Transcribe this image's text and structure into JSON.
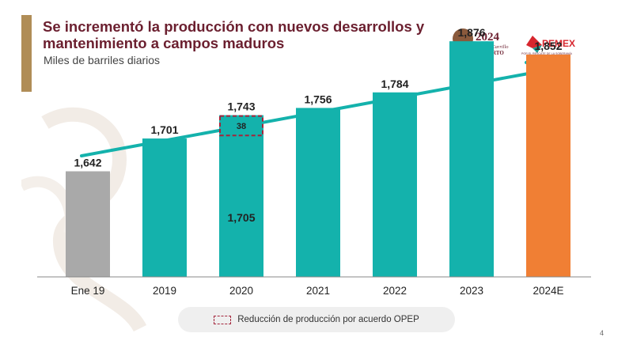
{
  "title": "Se incrementó la producción con nuevos desarrollos y mantenimiento a campos maduros",
  "subtitle": "Miles de barriles diarios",
  "logos": {
    "gov_year": "2024",
    "gov_name_line1": "Felipe Carrillo",
    "gov_name_line2": "PUERTO",
    "pemex_name": "PEMEX",
    "pemex_tagline": "POR EL RESCATE DE LA SOBERANÍA"
  },
  "legend": {
    "label": "Reducción de producción por acuerdo OPEP"
  },
  "page_number": "4",
  "colors": {
    "teal": "#14b2ac",
    "gray": "#a9a9a9",
    "orange": "#f07f34",
    "maroon": "#6b1f2f",
    "dashed": "#a3243b",
    "arrow": "#14b2ac"
  },
  "chart_data": {
    "type": "bar",
    "categories": [
      "Ene 19",
      "2019",
      "2020",
      "2021",
      "2022",
      "2023",
      "2024E"
    ],
    "values": [
      1642,
      1701,
      1743,
      1756,
      1784,
      1876,
      1852
    ],
    "value_labels": [
      "1,642",
      "1,701",
      "1,743",
      "1,756",
      "1,784",
      "1,876",
      "1,852"
    ],
    "bar_colors": [
      "gray",
      "teal",
      "teal",
      "teal",
      "teal",
      "teal",
      "orange"
    ],
    "segments": {
      "category": "2020",
      "base": 1705,
      "base_label": "1,705",
      "reduction": 38,
      "reduction_label": "38"
    },
    "trend_arrow": true,
    "title": "",
    "xlabel": "",
    "ylabel": "",
    "grid": false,
    "legend_position": "bottom"
  }
}
